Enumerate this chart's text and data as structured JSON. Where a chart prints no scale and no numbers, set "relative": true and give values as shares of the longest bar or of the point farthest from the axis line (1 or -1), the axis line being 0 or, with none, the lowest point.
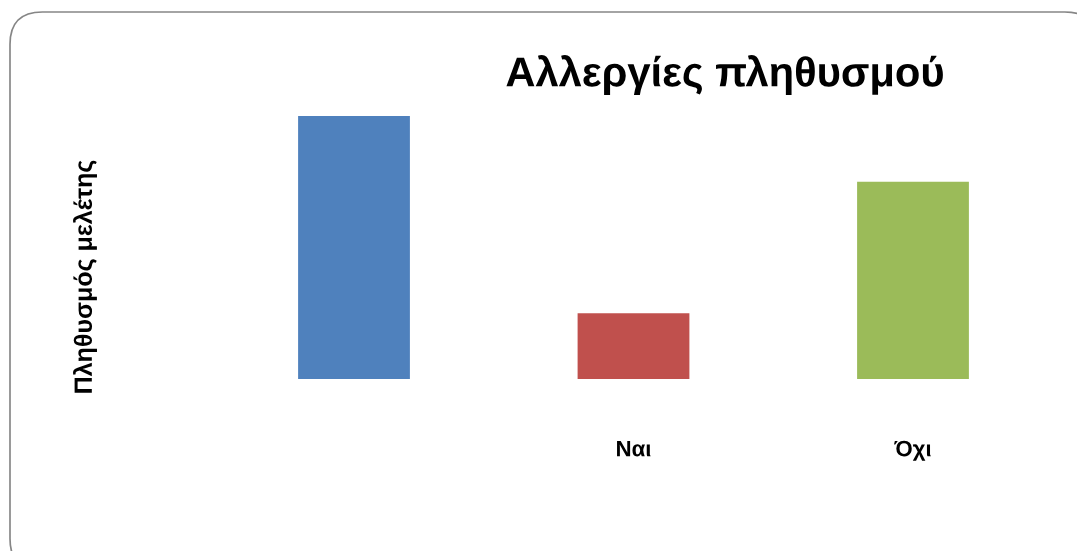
{
  "chart_data": {
    "type": "bar",
    "title": "Αλλεργίες πληθυσμού",
    "ylabel": "Πληθυσμός μελέτης",
    "categories": [
      null,
      "Ναι",
      "Όχι"
    ],
    "values": [
      1,
      0.25,
      0.75
    ],
    "colors": [
      "#4f81bd",
      "#c0504d",
      "#9bbb59"
    ],
    "relative": true
  }
}
